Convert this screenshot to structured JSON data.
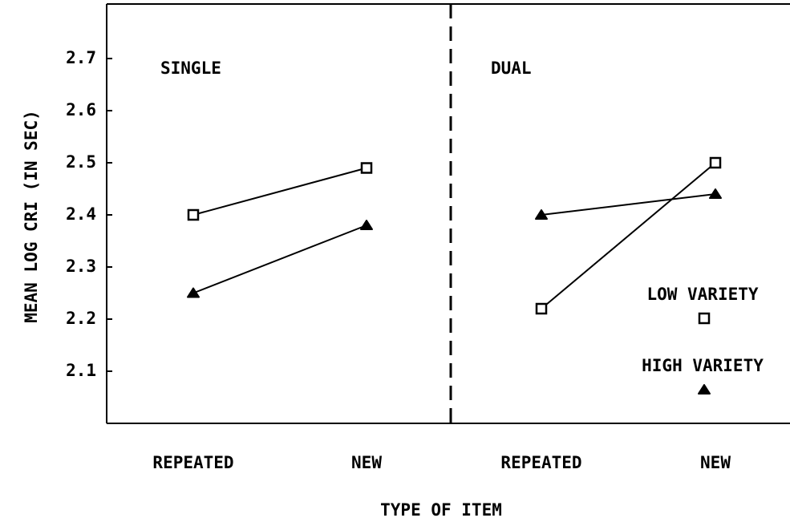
{
  "chart_data": {
    "type": "line",
    "y_label": "MEAN LOG CRI (IN SEC)",
    "x_label": "TYPE OF ITEM",
    "panels": [
      "SINGLE",
      "DUAL"
    ],
    "categories": [
      "REPEATED",
      "NEW",
      "REPEATED",
      "NEW"
    ],
    "series": [
      {
        "name": "LOW VARIETY",
        "marker": "square",
        "color": "#000000",
        "values": [
          2.4,
          2.49,
          2.22,
          2.5
        ]
      },
      {
        "name": "HIGH VARIETY",
        "marker": "triangle",
        "color": "#000000",
        "values": [
          2.25,
          2.38,
          2.4,
          2.44
        ]
      }
    ],
    "ylim": [
      2.0,
      2.8
    ],
    "yticks": [
      2.1,
      2.2,
      2.3,
      2.4,
      2.5,
      2.6,
      2.7
    ]
  }
}
